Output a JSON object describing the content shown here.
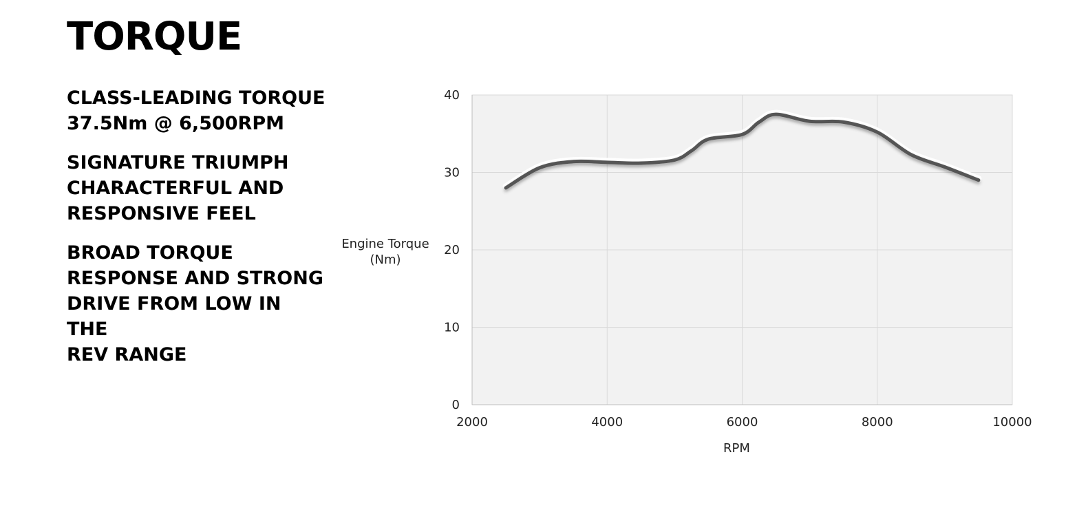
{
  "page": {
    "title": "TORQUE",
    "features": [
      {
        "lines": [
          "CLASS-LEADING TORQUE",
          "37.5Nm @ 6,500RPM"
        ]
      },
      {
        "lines": [
          "SIGNATURE TRIUMPH",
          "CHARACTERFUL AND",
          "RESPONSIVE FEEL"
        ]
      },
      {
        "lines": [
          "BROAD TORQUE",
          "RESPONSE AND STRONG",
          "DRIVE FROM LOW IN THE",
          "REV RANGE"
        ]
      }
    ]
  },
  "chart_data": {
    "type": "line",
    "title": "",
    "xlabel": "RPM",
    "ylabel_lines": [
      "Engine Torque",
      "(Nm)"
    ],
    "xlim": [
      2000,
      10000
    ],
    "ylim": [
      0,
      40
    ],
    "x_ticks": [
      2000,
      4000,
      6000,
      8000,
      10000
    ],
    "y_ticks": [
      0,
      10,
      20,
      30,
      40
    ],
    "grid": true,
    "plot_background": "#f2f2f2",
    "grid_color": "#d9d9d9",
    "line_color": "#555555",
    "series": [
      {
        "x": [
          2500,
          3000,
          3500,
          4000,
          4500,
          5000,
          5250,
          5500,
          6000,
          6250,
          6500,
          7000,
          7500,
          8000,
          8500,
          9000,
          9500
        ],
        "y": [
          28.0,
          30.6,
          31.4,
          31.3,
          31.2,
          31.6,
          32.8,
          34.3,
          34.9,
          36.5,
          37.5,
          36.6,
          36.5,
          35.2,
          32.3,
          30.7,
          29.0
        ]
      }
    ]
  }
}
